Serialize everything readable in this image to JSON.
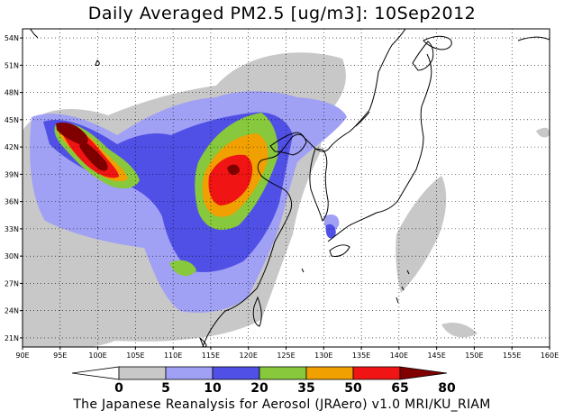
{
  "title": "Daily Averaged PM2.5 [ug/m3]: 10Sep2012",
  "credit": "The Japanese Reanalysis for Aerosol (JRAero) v1.0 MRI/KU_RIAM",
  "map": {
    "lon_range": [
      90,
      160
    ],
    "lat_range": [
      20,
      55
    ],
    "lon_ticks": [
      "90E",
      "95E",
      "100E",
      "105E",
      "110E",
      "115E",
      "120E",
      "125E",
      "130E",
      "135E",
      "140E",
      "145E",
      "150E",
      "155E",
      "160E"
    ],
    "lat_ticks": [
      "54N",
      "51N",
      "48N",
      "45N",
      "42N",
      "39N",
      "36N",
      "33N",
      "30N",
      "27N",
      "24N",
      "21N"
    ],
    "grid": "dotted"
  },
  "colorbar": {
    "levels": [
      "0",
      "5",
      "10",
      "20",
      "35",
      "50",
      "65",
      "80"
    ],
    "colors": [
      "#ffffff",
      "#c8c8c8",
      "#a0a0f5",
      "#5050e6",
      "#87c83c",
      "#f0a000",
      "#f01414",
      "#800000"
    ]
  }
}
